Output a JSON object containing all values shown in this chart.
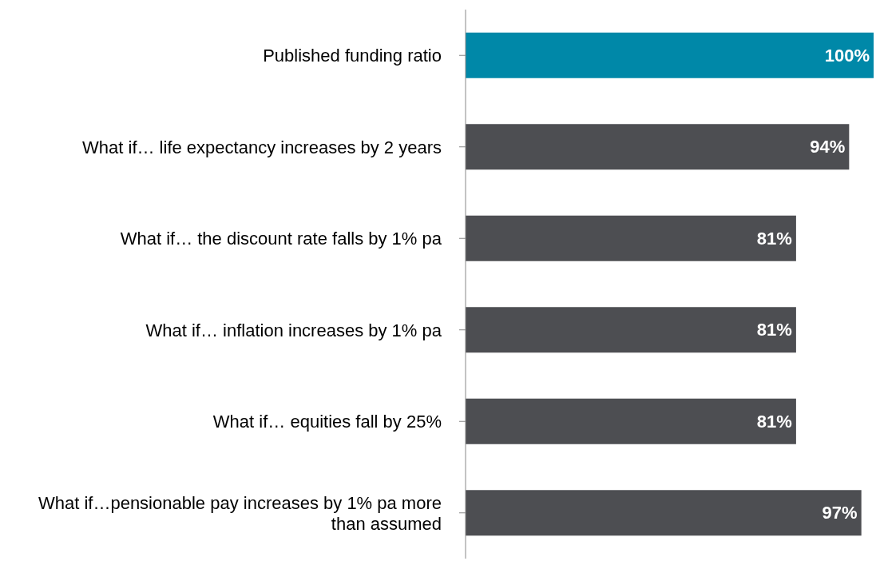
{
  "chart_data": {
    "type": "bar",
    "orientation": "horizontal",
    "categories": [
      "Published funding ratio",
      "What if… life expectancy increases by 2 years",
      "What if… the discount rate falls by 1% pa",
      "What if… inflation increases by 1% pa",
      "What if… equities fall by 25%",
      "What if…pensionable pay increases by 1% pa more than assumed"
    ],
    "values": [
      100,
      94,
      81,
      81,
      81,
      97
    ],
    "colors": [
      "#0088a8",
      "#4d4e52",
      "#4d4e52",
      "#4d4e52",
      "#4d4e52",
      "#4d4e52"
    ],
    "value_labels": [
      "100%",
      "94%",
      "81%",
      "81%",
      "81%",
      "97%"
    ],
    "grid": false
  }
}
